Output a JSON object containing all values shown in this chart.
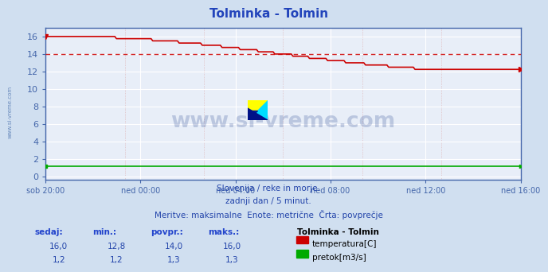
{
  "title": "Tolminka - Tolmin",
  "title_color": "#2244bb",
  "bg_color": "#d0dff0",
  "plot_bg_color": "#e8eef8",
  "grid_color_major": "#ffffff",
  "grid_color_minor": "#f0c0c0",
  "x_tick_labels": [
    "sob 20:00",
    "ned 00:00",
    "ned 04:00",
    "ned 08:00",
    "ned 12:00",
    "ned 16:00"
  ],
  "y_ticks": [
    0,
    2,
    4,
    6,
    8,
    10,
    12,
    14,
    16
  ],
  "y_min": -0.3,
  "y_max": 17.0,
  "temp_color": "#cc0000",
  "flow_color": "#00aa00",
  "avg_line_color": "#cc0000",
  "avg_value": 14.0,
  "footer_lines": [
    "Slovenija / reke in morje.",
    "zadnji dan / 5 minut.",
    "Meritve: maksimalne  Enote: metrične  Črta: povprečje"
  ],
  "table_headers": [
    "sedaj:",
    "min.:",
    "povpr.:",
    "maks.:"
  ],
  "table_row1": [
    "16,0",
    "12,8",
    "14,0",
    "16,0"
  ],
  "table_row2": [
    "1,2",
    "1,2",
    "1,3",
    "1,3"
  ],
  "legend_title": "Tolminka - Tolmin",
  "legend_items": [
    "temperatura[C]",
    "pretok[m3/s]"
  ],
  "legend_colors": [
    "#cc0000",
    "#00aa00"
  ],
  "watermark_text": "www.si-vreme.com",
  "watermark_color": "#1a3a8a",
  "watermark_alpha": 0.22,
  "sidebar_text": "www.si-vreme.com",
  "sidebar_color": "#6688bb",
  "n_points": 289,
  "spine_color": "#4466aa",
  "tick_color": "#4466aa",
  "text_color": "#2244aa",
  "header_color": "#2244cc"
}
